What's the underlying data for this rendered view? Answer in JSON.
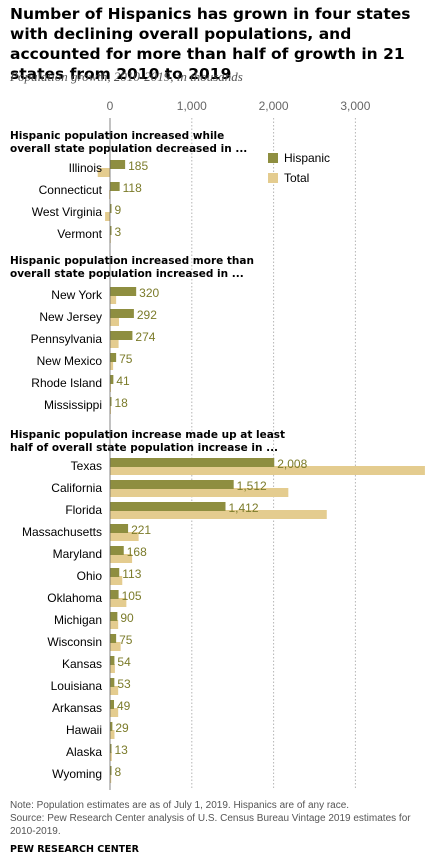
{
  "title": "Number of Hispanics has grown in four states with declining overall populations, and accounted for more than half of growth in 21 states from 2010 to 2019",
  "subtitle": "Population growth, 2010-2019, in thousands",
  "note": "Note: Population estimates are as of July 1, 2019. Hispanics are of any race.",
  "source": "Source: Pew Research Center analysis of U.S. Census Bureau Vintage 2019 estimates for 2010-2019.",
  "footer": "PEW RESEARCH CENTER",
  "colors": {
    "hispanic": "#8e8e40",
    "total": "#e4cc8f",
    "value_label": "#7b7b2a",
    "gridline": "#b5b5b5"
  },
  "chart_data": {
    "type": "bar",
    "orientation": "horizontal",
    "xlim": [
      -200,
      3750
    ],
    "xticks": [
      0,
      1000,
      2000,
      3000
    ],
    "xtick_labels": [
      "0",
      "1,000",
      "2,000",
      "3,000"
    ],
    "grid": true,
    "legend": {
      "position": "top-right",
      "entries": [
        "Hispanic",
        "Total"
      ]
    },
    "series_names": [
      "Hispanic",
      "Total"
    ],
    "groups": [
      {
        "title": [
          "Hispanic population increased while",
          "overall state population decreased in ..."
        ],
        "rows": [
          {
            "state": "Illinois",
            "hispanic": 185,
            "hispanic_label": "185",
            "total": -150
          },
          {
            "state": "Connecticut",
            "hispanic": 118,
            "hispanic_label": "118",
            "total": -10
          },
          {
            "state": "West Virginia",
            "hispanic": 9,
            "hispanic_label": "9",
            "total": -60
          },
          {
            "state": "Vermont",
            "hispanic": 3,
            "hispanic_label": "3",
            "total": -2
          }
        ]
      },
      {
        "title": [
          "Hispanic population increased more than",
          "overall state population increased in ..."
        ],
        "rows": [
          {
            "state": "New York",
            "hispanic": 320,
            "hispanic_label": "320",
            "total": 75
          },
          {
            "state": "New Jersey",
            "hispanic": 292,
            "hispanic_label": "292",
            "total": 110
          },
          {
            "state": "Pennsylvania",
            "hispanic": 274,
            "hispanic_label": "274",
            "total": 105
          },
          {
            "state": "New Mexico",
            "hispanic": 75,
            "hispanic_label": "75",
            "total": 38
          },
          {
            "state": "Rhode Island",
            "hispanic": 41,
            "hispanic_label": "41",
            "total": 8
          },
          {
            "state": "Mississippi",
            "hispanic": 18,
            "hispanic_label": "18",
            "total": 10
          }
        ]
      },
      {
        "title": [
          "Hispanic population increase made up at least",
          "half of overall state population increase in ..."
        ],
        "rows": [
          {
            "state": "Texas",
            "hispanic": 2008,
            "hispanic_label": "2,008",
            "total": 3850
          },
          {
            "state": "California",
            "hispanic": 1512,
            "hispanic_label": "1,512",
            "total": 2180
          },
          {
            "state": "Florida",
            "hispanic": 1412,
            "hispanic_label": "1,412",
            "total": 2650
          },
          {
            "state": "Massachusetts",
            "hispanic": 221,
            "hispanic_label": "221",
            "total": 350
          },
          {
            "state": "Maryland",
            "hispanic": 168,
            "hispanic_label": "168",
            "total": 270
          },
          {
            "state": "Ohio",
            "hispanic": 113,
            "hispanic_label": "113",
            "total": 150
          },
          {
            "state": "Oklahoma",
            "hispanic": 105,
            "hispanic_label": "105",
            "total": 200
          },
          {
            "state": "Michigan",
            "hispanic": 90,
            "hispanic_label": "90",
            "total": 100
          },
          {
            "state": "Wisconsin",
            "hispanic": 75,
            "hispanic_label": "75",
            "total": 130
          },
          {
            "state": "Kansas",
            "hispanic": 54,
            "hispanic_label": "54",
            "total": 60
          },
          {
            "state": "Louisiana",
            "hispanic": 53,
            "hispanic_label": "53",
            "total": 100
          },
          {
            "state": "Arkansas",
            "hispanic": 49,
            "hispanic_label": "49",
            "total": 100
          },
          {
            "state": "Hawaii",
            "hispanic": 29,
            "hispanic_label": "29",
            "total": 55
          },
          {
            "state": "Alaska",
            "hispanic": 13,
            "hispanic_label": "13",
            "total": 22
          },
          {
            "state": "Wyoming",
            "hispanic": 8,
            "hispanic_label": "8",
            "total": 15
          }
        ]
      }
    ]
  }
}
